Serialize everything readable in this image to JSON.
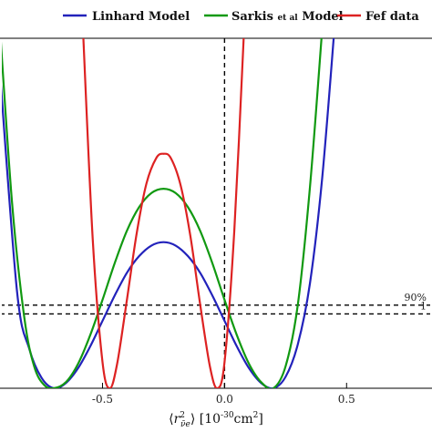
{
  "chart_data": {
    "type": "line",
    "title": "",
    "xlabel_parts": {
      "open": "⟨",
      "r": "r",
      "sup": "2",
      "sub": "ν̄e",
      "close": "⟩ [10",
      "exp": "-30",
      "unit": "cm",
      "unit_sup": "2",
      "end": "]"
    },
    "ylabel": "",
    "xlim": [
      -0.92,
      0.85
    ],
    "ylim": [
      0,
      4.0
    ],
    "grid": false,
    "legend_position": "top",
    "x_ticks": [
      {
        "value": -0.5,
        "label": "-0.5"
      },
      {
        "value": 0.0,
        "label": "0.0"
      },
      {
        "value": 0.5,
        "label": "0.5"
      }
    ],
    "hlines": [
      {
        "y": 0.85,
        "label": "1"
      },
      {
        "y": 0.95,
        "label": "90%"
      }
    ],
    "vline": {
      "x": 0.0
    },
    "series": [
      {
        "name": "Linhard Model",
        "color": "#2222bb",
        "x": [
          -0.92,
          -0.85,
          -0.8,
          -0.75,
          -0.7,
          -0.65,
          -0.6,
          -0.55,
          -0.5,
          -0.45,
          -0.4,
          -0.35,
          -0.3,
          -0.25,
          -0.2,
          -0.15,
          -0.1,
          -0.05,
          0.0,
          0.05,
          0.1,
          0.15,
          0.2,
          0.25,
          0.3,
          0.35,
          0.4,
          0.45
        ],
        "y": [
          3.6,
          1.1,
          0.45,
          0.12,
          0.0,
          0.06,
          0.23,
          0.48,
          0.77,
          1.06,
          1.32,
          1.51,
          1.63,
          1.67,
          1.63,
          1.51,
          1.32,
          1.06,
          0.77,
          0.48,
          0.23,
          0.06,
          0.0,
          0.13,
          0.5,
          1.2,
          2.4,
          4.1
        ]
      },
      {
        "name": "Sarkis et al Model",
        "name_main": "Sarkis ",
        "name_small": "et al",
        "name_end": " Model",
        "color": "#119911",
        "x": [
          -0.92,
          -0.87,
          -0.82,
          -0.78,
          -0.74,
          -0.7,
          -0.65,
          -0.6,
          -0.55,
          -0.5,
          -0.45,
          -0.4,
          -0.35,
          -0.3,
          -0.25,
          -0.2,
          -0.15,
          -0.1,
          -0.05,
          0.0,
          0.05,
          0.1,
          0.15,
          0.2,
          0.25,
          0.3,
          0.35,
          0.4
        ],
        "y": [
          4.1,
          2.1,
          0.8,
          0.25,
          0.04,
          0.0,
          0.07,
          0.28,
          0.61,
          1.01,
          1.43,
          1.8,
          2.07,
          2.23,
          2.28,
          2.23,
          2.07,
          1.8,
          1.43,
          1.01,
          0.61,
          0.28,
          0.07,
          0.0,
          0.25,
          0.95,
          2.3,
          4.1
        ]
      },
      {
        "name": "Fef data",
        "color": "#dd2222",
        "x": [
          -0.58,
          -0.54,
          -0.5,
          -0.47,
          -0.44,
          -0.4,
          -0.36,
          -0.32,
          -0.28,
          -0.25,
          -0.22,
          -0.18,
          -0.14,
          -0.1,
          -0.06,
          -0.03,
          0.0,
          0.04,
          0.08
        ],
        "y": [
          4.1,
          1.7,
          0.3,
          0.0,
          0.28,
          1.01,
          1.77,
          2.34,
          2.63,
          2.68,
          2.63,
          2.32,
          1.74,
          0.96,
          0.25,
          0.0,
          0.3,
          1.8,
          4.1
        ]
      }
    ]
  }
}
